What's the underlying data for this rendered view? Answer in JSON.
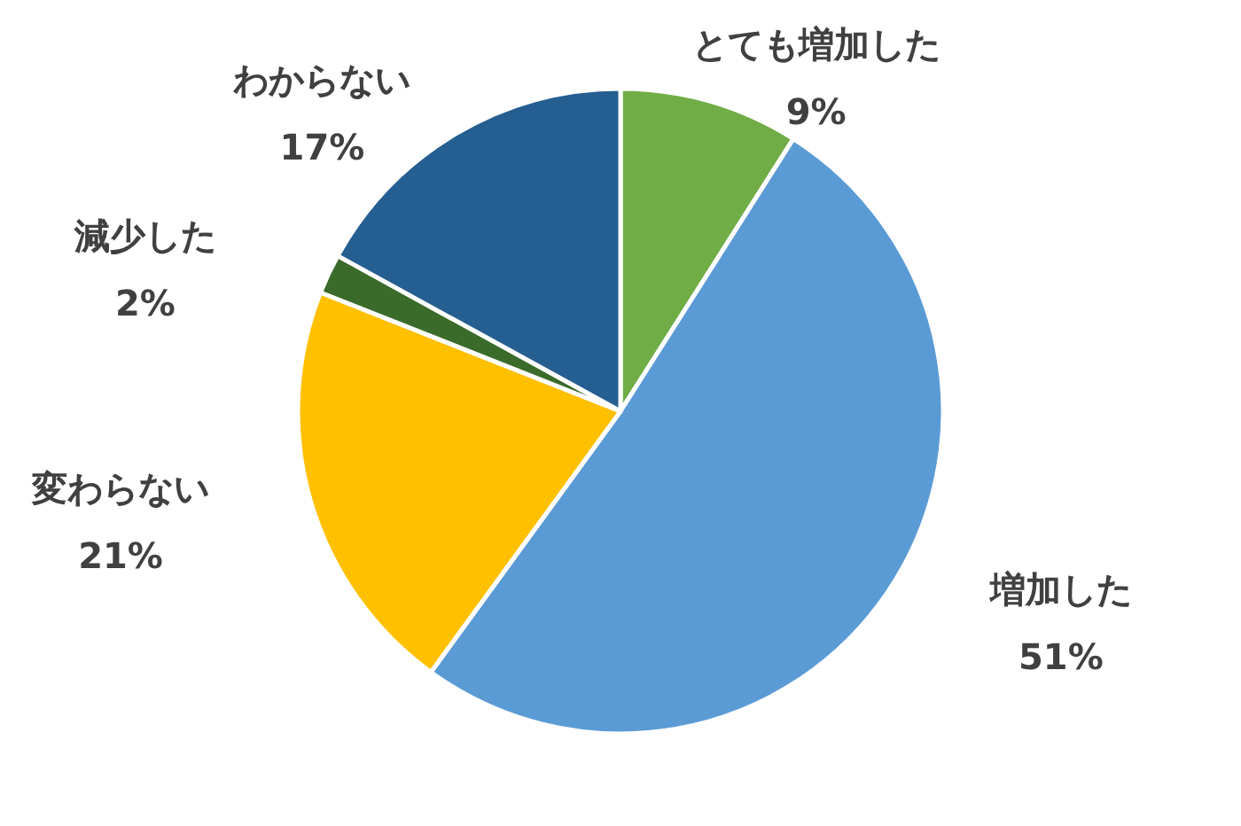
{
  "chart_data": {
    "type": "pie",
    "categories": [
      "とても増加した",
      "増加した",
      "変わらない",
      "減少した",
      "わからない"
    ],
    "values": [
      9,
      51,
      21,
      2,
      17
    ],
    "colors": [
      "#70ad47",
      "#5b9bd5",
      "#ffc000",
      "#3a6b2a",
      "#255e91"
    ],
    "value_labels": [
      "9%",
      "51%",
      "21%",
      "2%",
      "17%"
    ]
  }
}
